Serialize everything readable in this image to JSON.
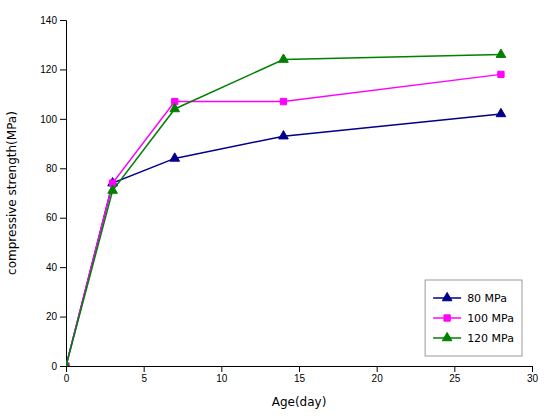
{
  "chart_data": {
    "type": "line",
    "xlabel": "Age(day)",
    "ylabel": "compressive strength(MPa)",
    "x": [
      0,
      3,
      7,
      14,
      28
    ],
    "series": [
      {
        "name": "80 MPa",
        "color": "#00008B",
        "marker": "triangle",
        "line_style": "solid",
        "values": [
          0,
          74,
          84,
          93,
          102
        ]
      },
      {
        "name": "100 MPa",
        "color": "#FF00FF",
        "marker": "square",
        "line_style": "solid",
        "values": [
          0,
          74,
          107,
          107,
          118
        ]
      },
      {
        "name": "120 MPa",
        "color": "#008000",
        "marker": "triangle",
        "line_style": "solid",
        "values": [
          0,
          71,
          104,
          124,
          126
        ]
      }
    ],
    "xlim": [
      0,
      30
    ],
    "ylim": [
      0,
      140
    ],
    "xticks": [
      0,
      5,
      10,
      15,
      20,
      25,
      30
    ],
    "yticks": [
      0,
      20,
      40,
      60,
      80,
      100,
      120,
      140
    ],
    "legend": "lower right",
    "grid": false
  }
}
